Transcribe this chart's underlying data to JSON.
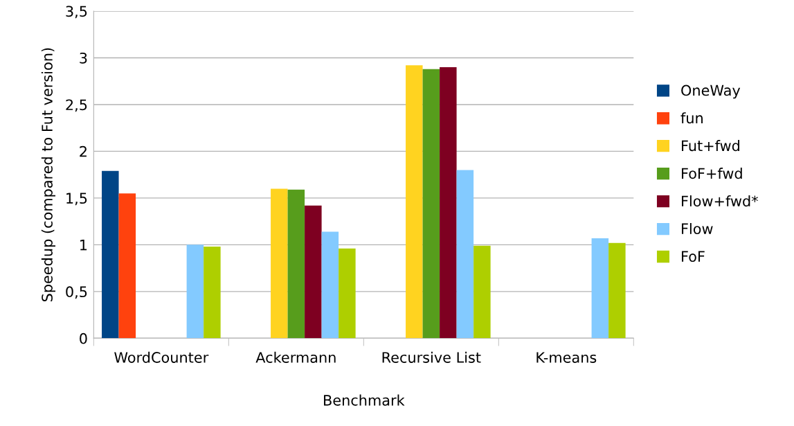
{
  "chart_data": {
    "type": "bar",
    "xlabel": "Benchmark",
    "ylabel": "Speedup (compared to Fut version)",
    "categories": [
      "WordCounter",
      "Ackermann",
      "Recursive List",
      "K-means"
    ],
    "series": [
      {
        "name": "OneWay",
        "color": "#004586",
        "values": [
          1.79,
          null,
          null,
          null
        ]
      },
      {
        "name": "fun",
        "color": "#ff420e",
        "values": [
          1.55,
          null,
          null,
          null
        ]
      },
      {
        "name": "Fut+fwd",
        "color": "#ffd320",
        "values": [
          null,
          1.6,
          2.92,
          null
        ]
      },
      {
        "name": "FoF+fwd",
        "color": "#579d1c",
        "values": [
          null,
          1.59,
          2.88,
          null
        ]
      },
      {
        "name": "Flow+fwd*",
        "color": "#7e0021",
        "values": [
          null,
          1.42,
          2.9,
          null
        ]
      },
      {
        "name": "Flow",
        "color": "#83caff",
        "values": [
          1.0,
          1.14,
          1.8,
          1.07
        ]
      },
      {
        "name": "FoF",
        "color": "#aecf00",
        "values": [
          0.98,
          0.96,
          0.99,
          1.02
        ]
      }
    ],
    "ylim": [
      0,
      3.5
    ],
    "yticks": [
      0,
      {
        "value": 0.5,
        "label": "0,5"
      },
      1,
      {
        "value": 1.5,
        "label": "1,5"
      },
      2,
      {
        "value": 2.5,
        "label": "2,5"
      },
      3,
      {
        "value": 3.5,
        "label": "3,5"
      }
    ],
    "grid": "y",
    "legend": "right"
  }
}
